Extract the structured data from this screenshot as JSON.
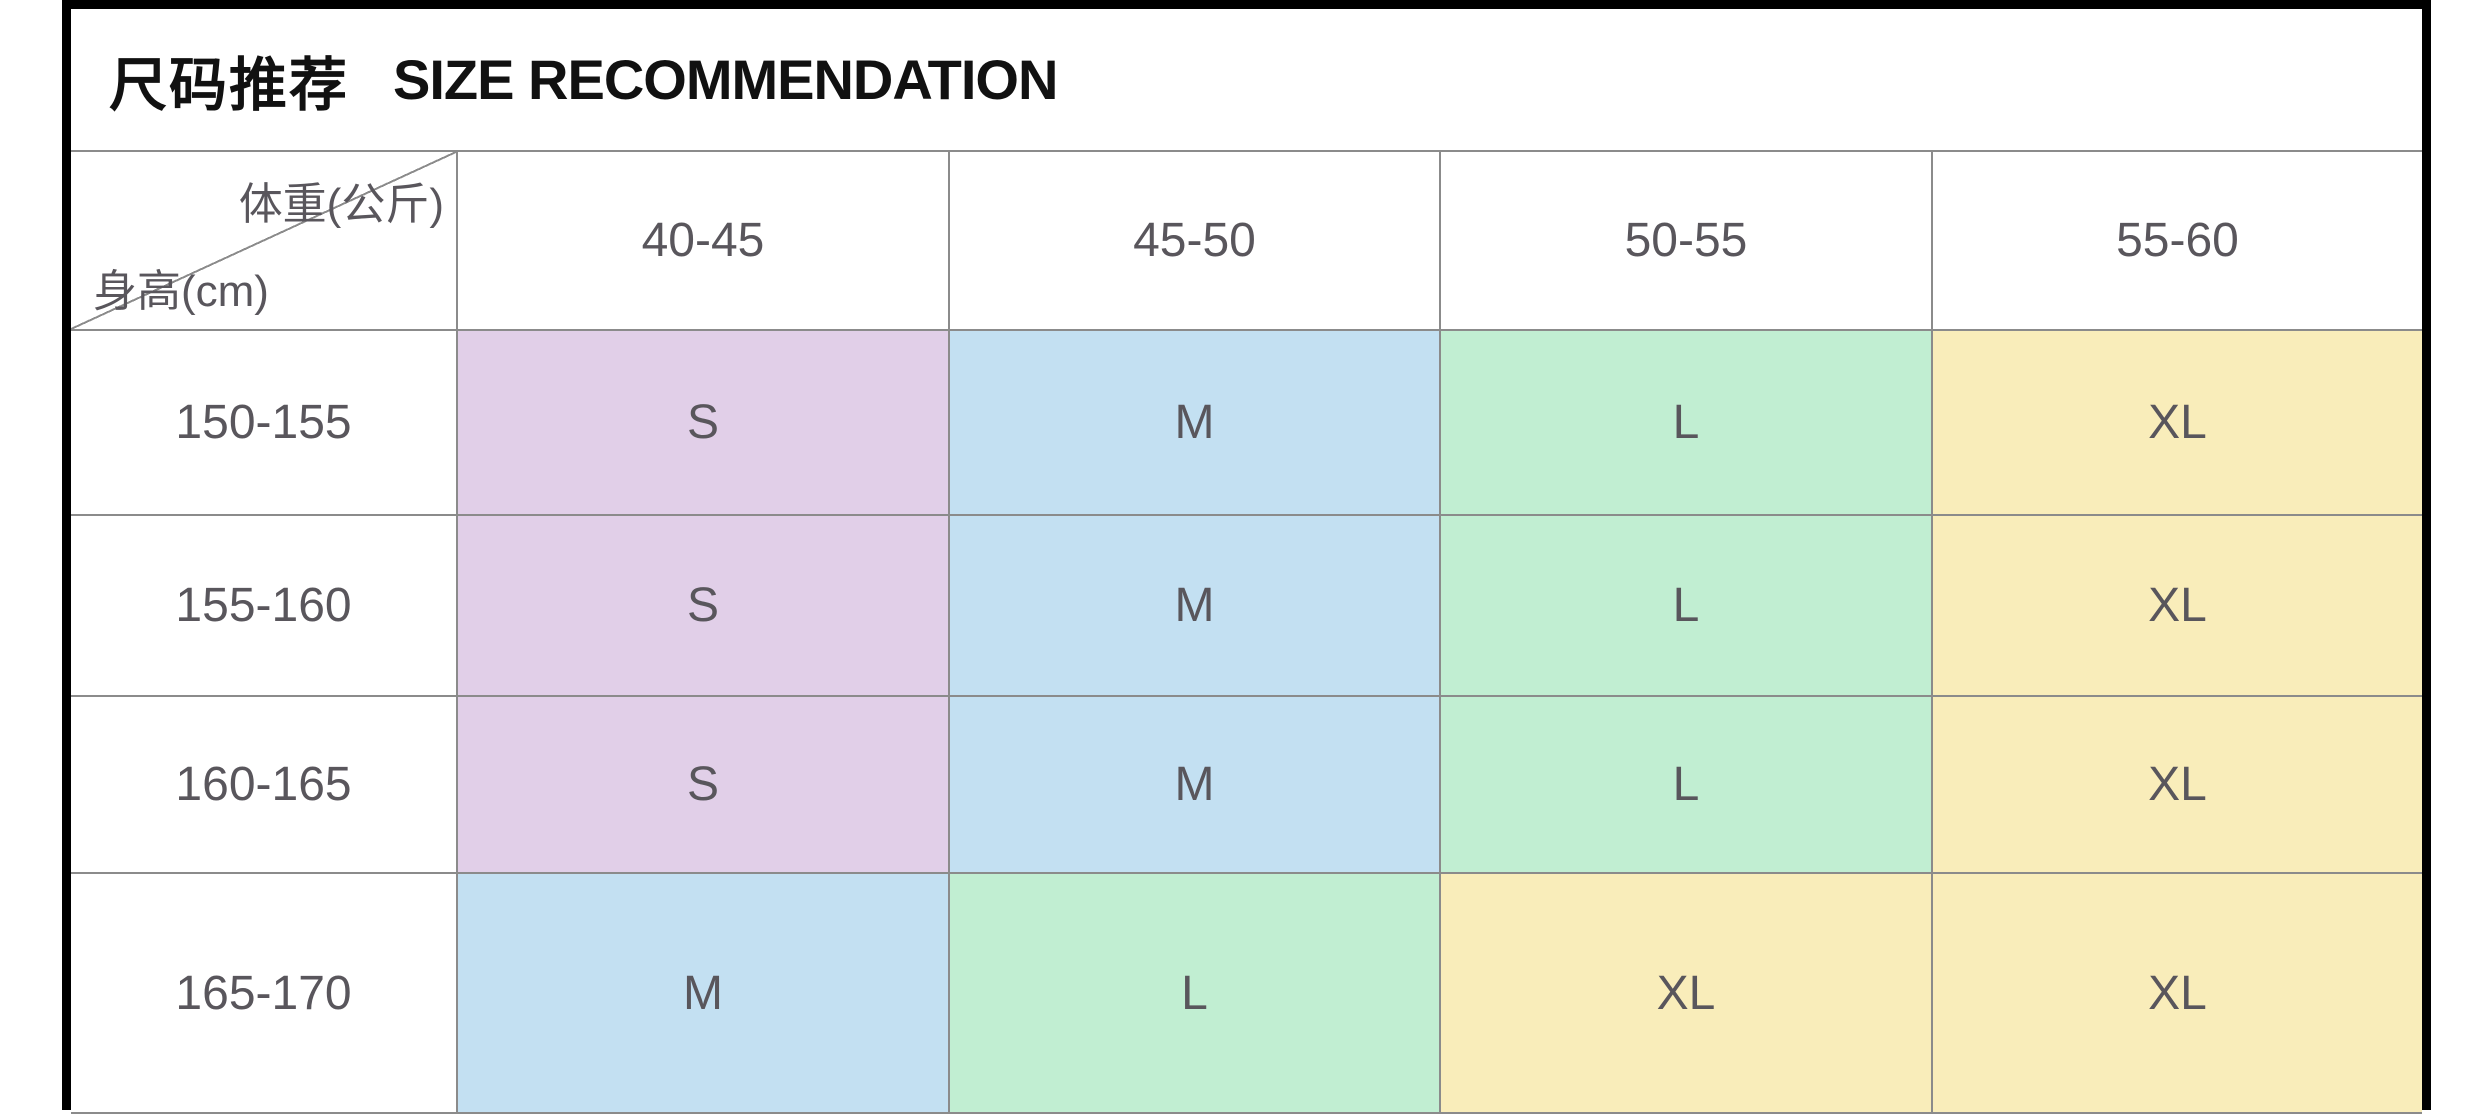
{
  "title": {
    "zh": "尺码推荐",
    "en": "SIZE RECOMMENDATION"
  },
  "axis": {
    "weight_label": "体重(公斤)",
    "height_label": "身高(cm)"
  },
  "columns": [
    "40-45",
    "45-50",
    "50-55",
    "55-60"
  ],
  "rows": [
    {
      "height": "150-155",
      "sizes": [
        {
          "label": "S",
          "color": "s"
        },
        {
          "label": "M",
          "color": "m"
        },
        {
          "label": "L",
          "color": "l"
        },
        {
          "label": "XL",
          "color": "xl"
        }
      ]
    },
    {
      "height": "155-160",
      "sizes": [
        {
          "label": "S",
          "color": "s"
        },
        {
          "label": "M",
          "color": "m"
        },
        {
          "label": "L",
          "color": "l"
        },
        {
          "label": "XL",
          "color": "xl"
        }
      ]
    },
    {
      "height": "160-165",
      "sizes": [
        {
          "label": "S",
          "color": "s"
        },
        {
          "label": "M",
          "color": "m"
        },
        {
          "label": "L",
          "color": "l"
        },
        {
          "label": "XL",
          "color": "xl"
        }
      ]
    },
    {
      "height": "165-170",
      "sizes": [
        {
          "label": "M",
          "color": "m"
        },
        {
          "label": "L",
          "color": "l"
        },
        {
          "label": "XL",
          "color": "xl"
        },
        {
          "label": "XL",
          "color": "xl"
        }
      ]
    }
  ],
  "colors": {
    "size_s_bg": "#e1cfe8",
    "size_m_bg": "#c3e0f2",
    "size_l_bg": "#c1eed2",
    "size_xl_bg": "#f9edba",
    "text": "#59565c",
    "grid": "#8b8b8b",
    "border": "#000000"
  },
  "chart_data": {
    "type": "table",
    "title": "尺码推荐 SIZE RECOMMENDATION",
    "column_axis_label": "体重(公斤)",
    "row_axis_label": "身高(cm)",
    "columns": [
      "40-45",
      "45-50",
      "50-55",
      "55-60"
    ],
    "row_labels": [
      "150-155",
      "155-160",
      "160-165",
      "165-170"
    ],
    "values": [
      [
        "S",
        "M",
        "L",
        "XL"
      ],
      [
        "S",
        "M",
        "L",
        "XL"
      ],
      [
        "S",
        "M",
        "L",
        "XL"
      ],
      [
        "M",
        "L",
        "XL",
        "XL"
      ]
    ],
    "cell_colors": {
      "S": "#e1cfe8",
      "M": "#c3e0f2",
      "L": "#c1eed2",
      "XL": "#f9edba"
    },
    "layout": "rows are height ranges (cm), columns are weight ranges (kg), bottom row cut off by image edge"
  }
}
